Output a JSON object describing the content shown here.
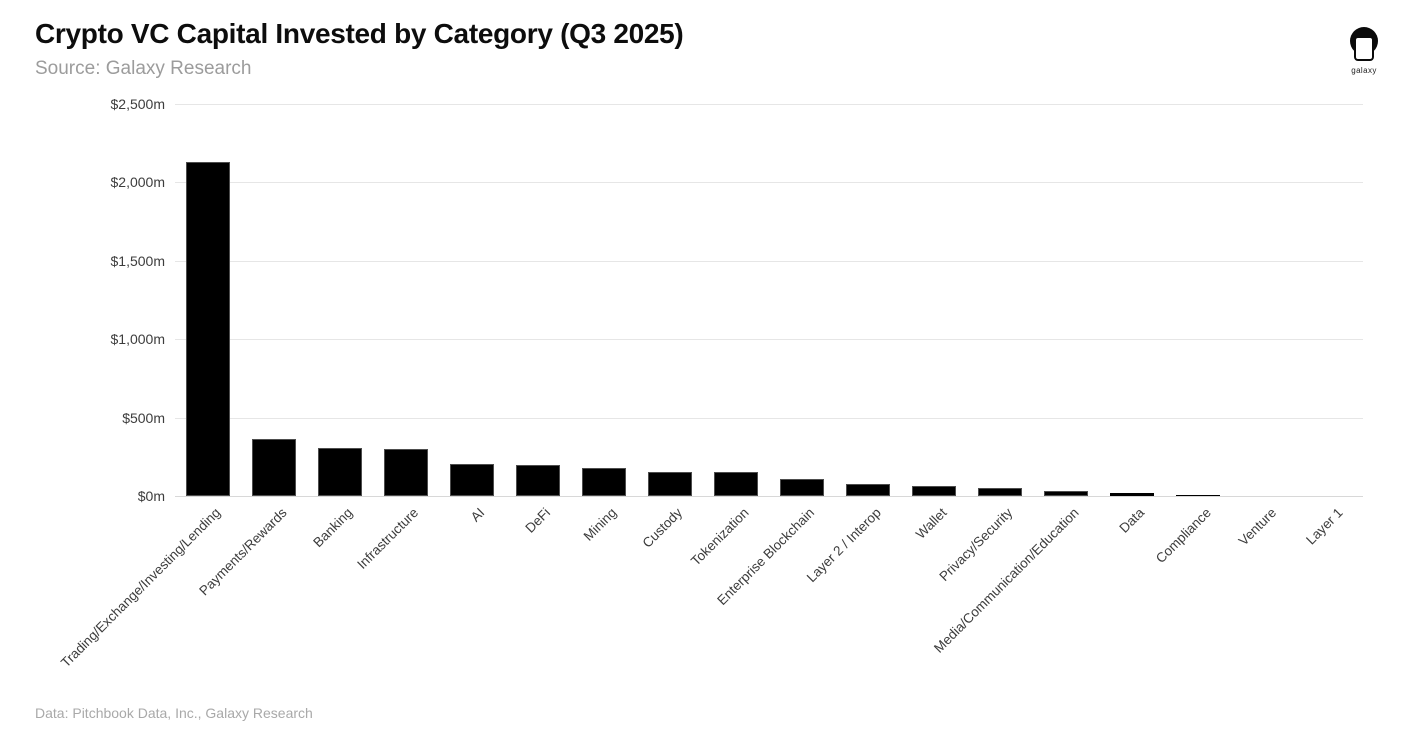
{
  "header": {
    "title": "Crypto VC Capital Invested by Category (Q3 2025)",
    "subtitle": "Source: Galaxy Research"
  },
  "logo": {
    "label": "galaxy"
  },
  "footer": {
    "text": "Data: Pitchbook Data, Inc., Galaxy Research"
  },
  "chart_data": {
    "type": "bar",
    "title": "Crypto VC Capital Invested by Category (Q3 2025)",
    "unit": "$m",
    "categories": [
      "Trading/Exchange/Investing/Lending",
      "Payments/Rewards",
      "Banking",
      "Infrastructure",
      "AI",
      "DeFi",
      "Mining",
      "Custody",
      "Tokenization",
      "Enterprise Blockchain",
      "Layer 2 / Interop",
      "Wallet",
      "Privacy/Security",
      "Media/Communication/Education",
      "Data",
      "Compliance",
      "Venture",
      "Layer 1"
    ],
    "values": [
      2130,
      365,
      305,
      300,
      205,
      195,
      180,
      150,
      150,
      110,
      75,
      65,
      50,
      35,
      20,
      5,
      3,
      2
    ],
    "xlabel": "",
    "ylabel": "",
    "ylim": [
      0,
      2500
    ],
    "y_tick_step": 500,
    "y_ticks_top_to_bottom": [
      "$2,500m",
      "$2,000m",
      "$1,500m",
      "$1,000m",
      "$500m",
      "$0m"
    ],
    "grid": "horizontal",
    "legend": "none",
    "colors": {
      "bar": "#000000",
      "bar_border": "#4d4d4d",
      "grid": "#e6e6e6",
      "axis_text": "#3d3d3d"
    }
  }
}
